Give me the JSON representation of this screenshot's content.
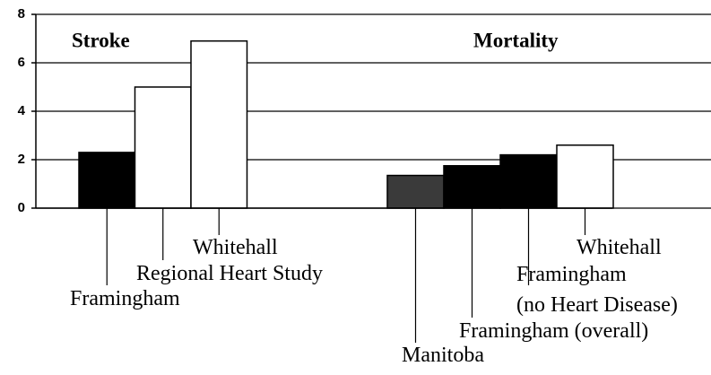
{
  "chart_data": {
    "type": "bar",
    "ylim": [
      0,
      8
    ],
    "yticks": [
      0,
      2,
      4,
      6,
      8
    ],
    "grid": true,
    "groups": [
      {
        "name": "Stroke",
        "categories": [
          [
            "Framingham"
          ],
          [
            "Regional Heart Study"
          ],
          [
            "Whitehall"
          ]
        ],
        "values": [
          2.3,
          5.0,
          6.9
        ],
        "colors": [
          "#000000",
          "#ffffff",
          "#ffffff"
        ]
      },
      {
        "name": "Mortality",
        "categories": [
          [
            "Manitoba"
          ],
          [
            "Framingham (overall)"
          ],
          [
            "Framingham",
            "(no Heart Disease)"
          ],
          [
            "Whitehall"
          ]
        ],
        "values": [
          1.35,
          1.75,
          2.2,
          2.6
        ],
        "colors": [
          "#3a3a3a",
          "#000000",
          "#000000",
          "#ffffff"
        ]
      }
    ]
  }
}
